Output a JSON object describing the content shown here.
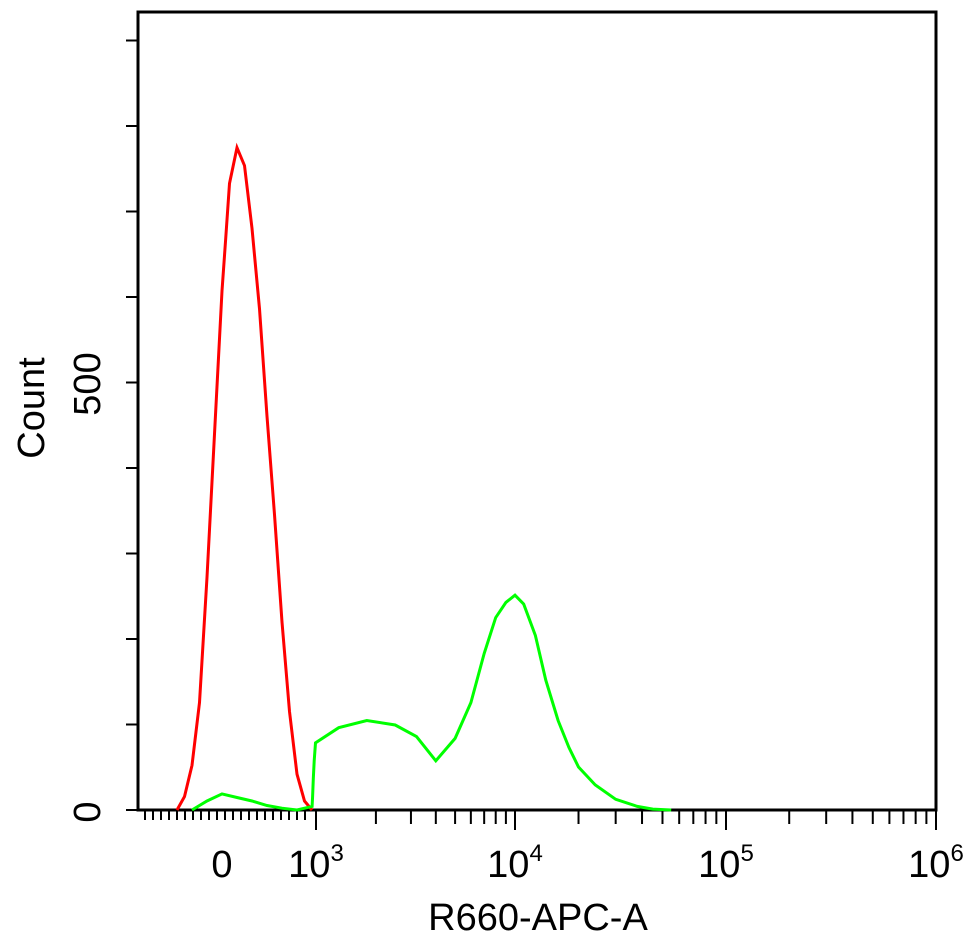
{
  "chart_data": {
    "type": "line",
    "title": "",
    "xlabel": "R660-APC-A",
    "ylabel": "Count",
    "x_scale": "biexponential",
    "x_major_ticks": [
      {
        "label": "0",
        "exp": ""
      },
      {
        "label": "10",
        "exp": "3"
      },
      {
        "label": "10",
        "exp": "4"
      },
      {
        "label": "10",
        "exp": "5"
      },
      {
        "label": "10",
        "exp": "6"
      }
    ],
    "y_tick_labels": [
      "0",
      "500"
    ],
    "ylim": [
      0,
      1000
    ],
    "grid": false,
    "legend": "none",
    "series": [
      {
        "color": "#ff0000",
        "points": [
          [
            -60,
            0
          ],
          [
            -50,
            15
          ],
          [
            -40,
            50
          ],
          [
            -30,
            120
          ],
          [
            -20,
            260
          ],
          [
            -10,
            420
          ],
          [
            0,
            580
          ],
          [
            5,
            640
          ],
          [
            10,
            700
          ],
          [
            20,
            740
          ],
          [
            30,
            720
          ],
          [
            40,
            650
          ],
          [
            50,
            560
          ],
          [
            60,
            440
          ],
          [
            70,
            330
          ],
          [
            80,
            210
          ],
          [
            90,
            110
          ],
          [
            100,
            40
          ],
          [
            110,
            10
          ],
          [
            120,
            0
          ]
        ]
      },
      {
        "color": "#00ff00",
        "points": [
          [
            -40,
            0
          ],
          [
            -20,
            10
          ],
          [
            0,
            18
          ],
          [
            20,
            14
          ],
          [
            40,
            10
          ],
          [
            60,
            5
          ],
          [
            80,
            2
          ],
          [
            100,
            0
          ],
          [
            150,
            4
          ],
          [
            250,
            15
          ],
          [
            400,
            35
          ],
          [
            600,
            55
          ],
          [
            900,
            75
          ],
          [
            1300,
            92
          ],
          [
            1800,
            100
          ],
          [
            2500,
            95
          ],
          [
            3200,
            82
          ],
          [
            4000,
            55
          ],
          [
            5000,
            80
          ],
          [
            6000,
            120
          ],
          [
            7000,
            175
          ],
          [
            8000,
            215
          ],
          [
            9000,
            232
          ],
          [
            10000,
            240
          ],
          [
            11000,
            230
          ],
          [
            12500,
            195
          ],
          [
            14000,
            145
          ],
          [
            16000,
            100
          ],
          [
            18000,
            70
          ],
          [
            20000,
            48
          ],
          [
            24000,
            28
          ],
          [
            30000,
            12
          ],
          [
            38000,
            4
          ],
          [
            45000,
            1
          ],
          [
            55000,
            0
          ]
        ]
      }
    ]
  }
}
